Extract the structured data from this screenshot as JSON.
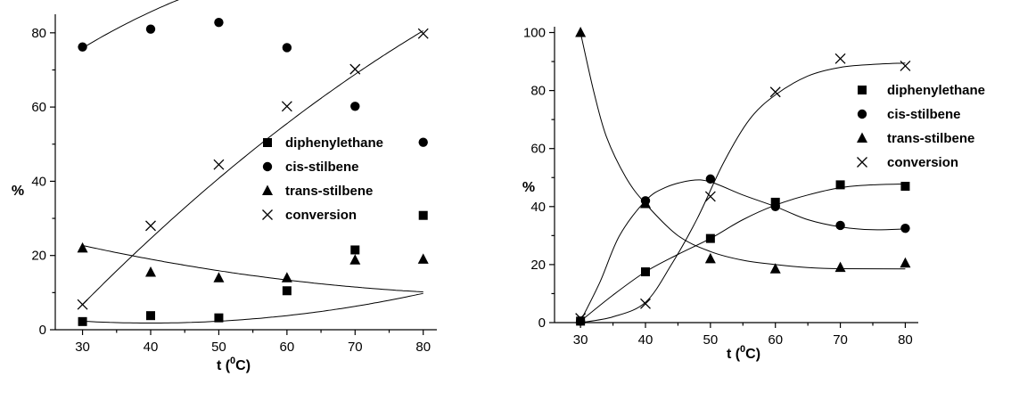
{
  "chart_data": [
    {
      "type": "scatter",
      "title": "",
      "xlabel": "t (",
      "xlabel_sup": "0",
      "xlabel_end": "C)",
      "ylabel": "%",
      "xlim": [
        26,
        82
      ],
      "ylim": [
        0,
        85
      ],
      "xticks": [
        30,
        40,
        50,
        60,
        70,
        80
      ],
      "yticks": [
        0,
        20,
        40,
        60,
        80
      ],
      "grid": false,
      "legend_position": "center-right",
      "series": [
        {
          "name": "diphenylethane",
          "marker": "square",
          "x": [
            30,
            40,
            50,
            60,
            70,
            80
          ],
          "y": [
            2.2,
            3.8,
            3.2,
            10.5,
            21.5,
            30.8
          ],
          "fit": [
            2.3,
            -0.1,
            0.005
          ]
        },
        {
          "name": "cis-stilbene",
          "marker": "circle",
          "x": [
            30,
            40,
            50,
            60,
            70,
            80
          ],
          "y": [
            76.2,
            81,
            82.8,
            76,
            60.2,
            50.5
          ],
          "fit": [
            75.9,
            1.1,
            -0.0125
          ]
        },
        {
          "name": "trans-stilbene",
          "marker": "triangle",
          "x": [
            30,
            40,
            50,
            60,
            70,
            80
          ],
          "y": [
            22,
            15.5,
            14,
            14,
            18.8,
            19
          ],
          "fit": [
            22.7,
            -0.4,
            0.003
          ]
        },
        {
          "name": "conversion",
          "marker": "cross",
          "x": [
            30,
            40,
            50,
            60,
            70,
            80
          ],
          "y": [
            6.8,
            28,
            44.5,
            60.2,
            70.2,
            79.8
          ],
          "fit": [
            6.8,
            1.85,
            -0.0075
          ]
        }
      ]
    },
    {
      "type": "scatter",
      "title": "",
      "xlabel": "t (",
      "xlabel_sup": "0",
      "xlabel_end": "C)",
      "ylabel": "%",
      "xlim": [
        26,
        82
      ],
      "ylim": [
        0,
        102
      ],
      "xticks": [
        30,
        40,
        50,
        60,
        70,
        80
      ],
      "yticks": [
        0,
        20,
        40,
        60,
        80,
        100
      ],
      "grid": false,
      "legend_position": "top-right",
      "series": [
        {
          "name": "diphenylethane",
          "marker": "square",
          "x": [
            30,
            40,
            50,
            60,
            70,
            80
          ],
          "y": [
            0.5,
            17.5,
            29,
            41.5,
            47.5,
            47
          ]
        },
        {
          "name": "cis-stilbene",
          "marker": "circle",
          "x": [
            30,
            40,
            50,
            60,
            70,
            80
          ],
          "y": [
            0.5,
            42,
            49.5,
            40,
            33.5,
            32.5
          ]
        },
        {
          "name": "trans-stilbene",
          "marker": "triangle",
          "x": [
            30,
            40,
            50,
            60,
            70,
            80
          ],
          "y": [
            100,
            41,
            22,
            18.5,
            19,
            20.5
          ]
        },
        {
          "name": "conversion",
          "marker": "cross",
          "x": [
            30,
            40,
            50,
            60,
            70,
            80
          ],
          "y": [
            1.5,
            6.5,
            43.5,
            79.5,
            91,
            88.5
          ]
        }
      ]
    }
  ]
}
